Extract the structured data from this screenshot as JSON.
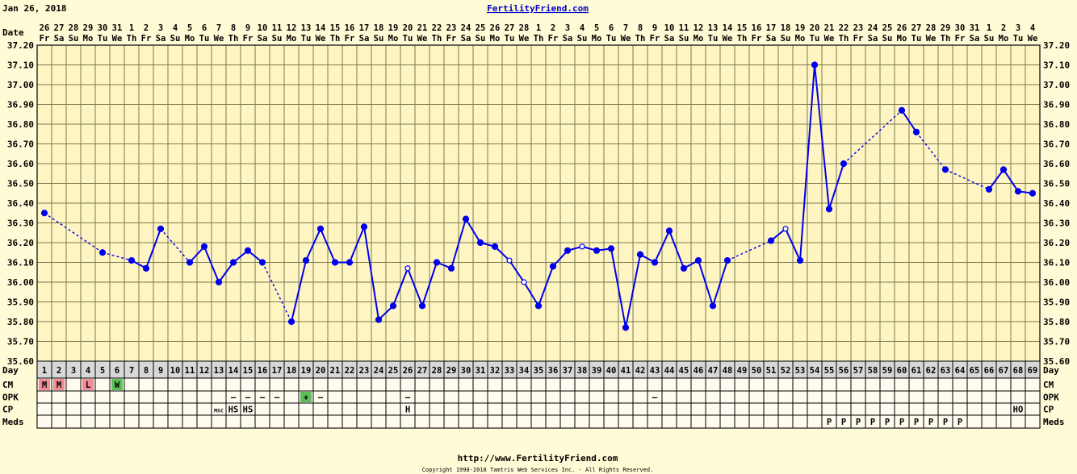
{
  "header": {
    "date": "Jan 26, 2018",
    "brand": "FertilityFriend.com",
    "date_row_label": "Date",
    "footer_url": "http://www.FertilityFriend.com",
    "copyright": "Copyright 1998-2018 Tamtris Web Services Inc. - All Rights Reserved."
  },
  "chart_data": {
    "type": "line",
    "title": "",
    "ylabel": "",
    "xlabel": "Day",
    "ylim": [
      35.6,
      37.2
    ],
    "ytick_step": 0.1,
    "grid": true,
    "days": [
      1,
      2,
      3,
      4,
      5,
      6,
      7,
      8,
      9,
      10,
      11,
      12,
      13,
      14,
      15,
      16,
      17,
      18,
      19,
      20,
      21,
      22,
      23,
      24,
      25,
      26,
      27,
      28,
      29,
      30,
      31,
      32,
      33,
      34,
      35,
      36,
      37,
      38,
      39,
      40,
      41,
      42,
      43,
      44,
      45,
      46,
      47,
      48,
      49,
      50,
      51,
      52,
      53,
      54,
      55,
      56,
      57,
      58,
      59,
      60,
      61,
      62,
      63,
      64,
      65,
      66,
      67,
      68,
      69
    ],
    "date_numbers": [
      "26",
      "27",
      "28",
      "29",
      "30",
      "31",
      "1",
      "2",
      "3",
      "4",
      "5",
      "6",
      "7",
      "8",
      "9",
      "10",
      "11",
      "12",
      "13",
      "14",
      "15",
      "16",
      "17",
      "18",
      "19",
      "20",
      "21",
      "22",
      "23",
      "24",
      "25",
      "26",
      "27",
      "28",
      "1",
      "2",
      "3",
      "4",
      "5",
      "6",
      "7",
      "8",
      "9",
      "10",
      "11",
      "12",
      "13",
      "14",
      "15",
      "16",
      "17",
      "18",
      "19",
      "20",
      "21",
      "22",
      "23",
      "24",
      "25",
      "26",
      "27",
      "28",
      "29",
      "30",
      "31",
      "1",
      "2",
      "3",
      "4"
    ],
    "weekdays": [
      "Fr",
      "Sa",
      "Su",
      "Mo",
      "Tu",
      "We",
      "Th",
      "Fr",
      "Sa",
      "Su",
      "Mo",
      "Tu",
      "We",
      "Th",
      "Fr",
      "Sa",
      "Su",
      "Mo",
      "Tu",
      "We",
      "Th",
      "Fr",
      "Sa",
      "Su",
      "Mo",
      "Tu",
      "We",
      "Th",
      "Fr",
      "Sa",
      "Su",
      "Mo",
      "Tu",
      "We",
      "Th",
      "Fr",
      "Sa",
      "Su",
      "Mo",
      "Tu",
      "We",
      "Th",
      "Fr",
      "Sa",
      "Su",
      "Mo",
      "Tu",
      "We",
      "Th",
      "Fr",
      "Sa",
      "Su",
      "Mo",
      "Tu",
      "We",
      "Th",
      "Fr",
      "Sa",
      "Su",
      "Mo",
      "Tu",
      "We",
      "Th",
      "Fr",
      "Sa",
      "Su",
      "Mo",
      "Tu",
      "We"
    ],
    "temperatures": [
      36.35,
      null,
      null,
      null,
      36.15,
      null,
      36.11,
      36.07,
      36.27,
      null,
      36.1,
      36.18,
      36.0,
      36.1,
      36.16,
      36.1,
      null,
      35.8,
      36.11,
      36.27,
      36.1,
      36.1,
      36.28,
      35.81,
      35.88,
      36.07,
      35.88,
      36.1,
      36.07,
      36.32,
      36.2,
      36.18,
      36.11,
      36.0,
      35.88,
      36.08,
      36.16,
      36.18,
      36.16,
      36.17,
      35.77,
      36.14,
      36.1,
      36.26,
      36.07,
      36.11,
      35.88,
      36.11,
      null,
      null,
      36.21,
      36.27,
      36.11,
      37.1,
      36.37,
      36.6,
      null,
      null,
      null,
      36.87,
      36.76,
      null,
      36.57,
      null,
      null,
      36.47,
      36.57,
      36.46,
      36.45
    ],
    "open_points": [
      26,
      33,
      34,
      38,
      52
    ],
    "rows": [
      {
        "label": "CM",
        "entries": [
          {
            "day": 1,
            "text": "M",
            "color": "#f08c96"
          },
          {
            "day": 2,
            "text": "M",
            "color": "#f08c96"
          },
          {
            "day": 4,
            "text": "L",
            "color": "#f08c96"
          },
          {
            "day": 6,
            "text": "W",
            "color": "#5cbf5c"
          }
        ]
      },
      {
        "label": "OPK",
        "entries": [
          {
            "day": 14,
            "text": "–"
          },
          {
            "day": 15,
            "text": "–"
          },
          {
            "day": 16,
            "text": "–"
          },
          {
            "day": 17,
            "text": "–"
          },
          {
            "day": 19,
            "text": "+",
            "color": "#5cbf5c"
          },
          {
            "day": 20,
            "text": "–"
          },
          {
            "day": 26,
            "text": "–"
          },
          {
            "day": 43,
            "text": "–"
          }
        ]
      },
      {
        "label": "CP",
        "entries": [
          {
            "day": 13,
            "text": "MSC",
            "small": true
          },
          {
            "day": 14,
            "text": "HS"
          },
          {
            "day": 15,
            "text": "HS"
          },
          {
            "day": 26,
            "text": "H"
          },
          {
            "day": 68,
            "text": "HO"
          }
        ]
      },
      {
        "label": "Meds",
        "entries": [
          {
            "day": 55,
            "text": "P"
          },
          {
            "day": 56,
            "text": "P"
          },
          {
            "day": 57,
            "text": "P"
          },
          {
            "day": 58,
            "text": "P"
          },
          {
            "day": 59,
            "text": "P"
          },
          {
            "day": 60,
            "text": "P"
          },
          {
            "day": 61,
            "text": "P"
          },
          {
            "day": 62,
            "text": "P"
          },
          {
            "day": 63,
            "text": "P"
          },
          {
            "day": 64,
            "text": "P"
          }
        ]
      }
    ],
    "colors": {
      "line": "#0000ee",
      "grid": "#7a7a50",
      "plot_bg": "#fff5c2",
      "day_row_bg": "#d8d8d8",
      "row_bg": "#fffbef",
      "brand": "#0000cc"
    }
  }
}
